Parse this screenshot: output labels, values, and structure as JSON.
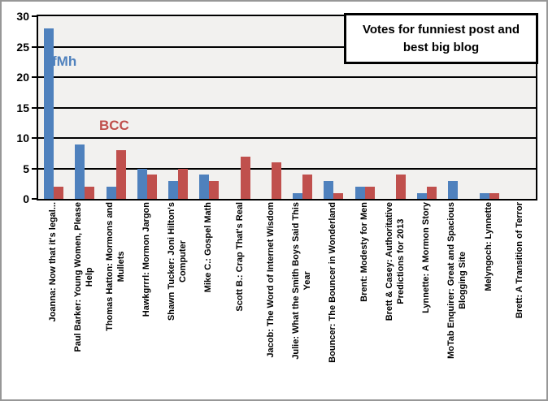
{
  "chart_data": {
    "type": "bar",
    "title": "Votes for funniest post and\nbest big blog",
    "categories": [
      "Joanna: Now that it's legal...",
      "Paul Barker: Young Women, Please\nHelp",
      "Thomas Hatton: Mormons and\nMullets",
      "Hawkgrrrl: Mormon Jargon",
      "Shawn Tucker: Joni Hilton's\nComputer",
      "Mike C.: Gospel Math",
      "Scott B.: Crap That's Real",
      "Jacob: The Word of Internet Wisdom",
      "Julie: What the Smith Boys Said This\nYear",
      "Bouncer: The Bouncer in Wonderland",
      "Brent: Modesty for Men",
      "Brett & Casey: Authoritative\nPredictions for 2013",
      "Lynnette: A Mormon Story",
      "MoTab Enquirer: Great and Spacious\nBlogging Site",
      "Melyngoch: Lynnette",
      "Brett: A Transition of Terror"
    ],
    "series": [
      {
        "name": "fMh",
        "color": "#4F81BD",
        "values": [
          28,
          9,
          2,
          5,
          3,
          4,
          0,
          0,
          1,
          3,
          2,
          0,
          1,
          3,
          1,
          0
        ]
      },
      {
        "name": "BCC",
        "color": "#C0504D",
        "values": [
          2,
          2,
          8,
          4,
          5,
          3,
          7,
          6,
          4,
          1,
          2,
          4,
          2,
          0,
          1,
          0
        ]
      }
    ],
    "xlabel": "",
    "ylabel": "",
    "ylim": [
      0,
      30
    ],
    "yticks": [
      0,
      5,
      10,
      15,
      20,
      25,
      30
    ],
    "grid": true,
    "legend_position": "annotations inside plot (fMh blue upper-left, BCC red below it)",
    "colors": {
      "plot_background": "#F2F1EF",
      "gridline": "#000000",
      "frame_border": "#979797",
      "title_border": "#000000",
      "text": "#000000"
    }
  }
}
